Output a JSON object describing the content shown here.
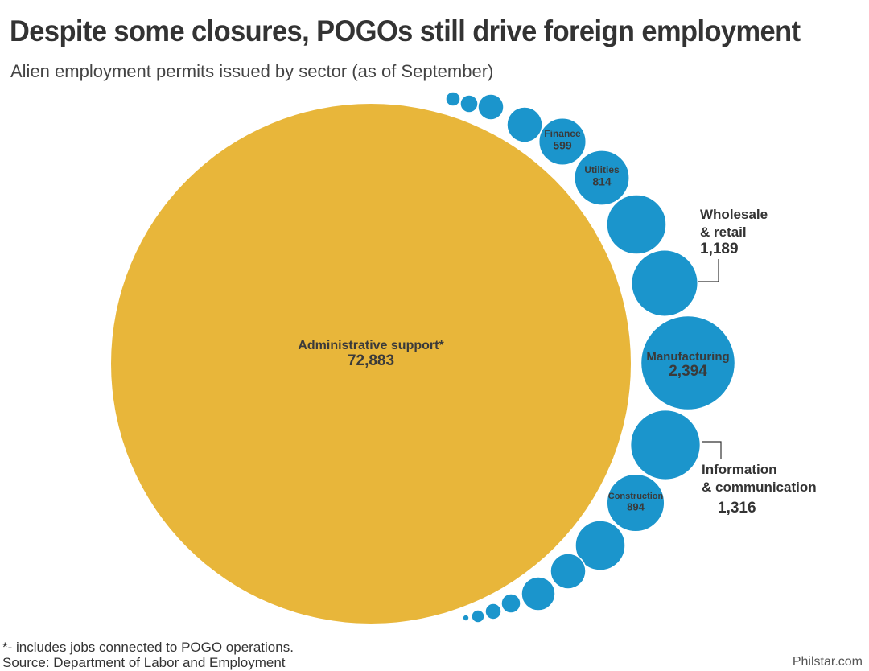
{
  "chart_data": {
    "type": "bubble",
    "title": "Despite some closures, POGOs still drive foreign employment",
    "subtitle": "Alien employment permits issued by sector (as of September)",
    "categories": [
      "Administrative support*",
      null,
      null,
      null,
      null,
      "Finance",
      "Utilities",
      null,
      "Wholesale\n& retail",
      "Manufacturing",
      "Information\n& communication",
      "Construction",
      null,
      null,
      null,
      null,
      null,
      null,
      null
    ],
    "values": [
      72883,
      57,
      85,
      179,
      338,
      599,
      814,
      957,
      1189,
      2394,
      1316,
      894,
      672,
      338,
      308,
      101,
      70,
      45,
      11
    ],
    "value_labels": [
      "72,883",
      null,
      null,
      null,
      null,
      "599",
      "814",
      null,
      "1,189",
      "2,394",
      "1,316",
      "894",
      null,
      null,
      null,
      null,
      null,
      null,
      null
    ],
    "colors": [
      "#e8b63a",
      "#1b95cc",
      "#1b95cc",
      "#1b95cc",
      "#1b95cc",
      "#1b95cc",
      "#1b95cc",
      "#1b95cc",
      "#1b95cc",
      "#1b95cc",
      "#1b95cc",
      "#1b95cc",
      "#1b95cc",
      "#1b95cc",
      "#1b95cc",
      "#1b95cc",
      "#1b95cc",
      "#1b95cc",
      "#1b95cc"
    ],
    "footnote": "*- includes jobs connected to POGO operations.",
    "source": "Source: Department of Labor and Employment",
    "credit": "Philstar.com"
  }
}
